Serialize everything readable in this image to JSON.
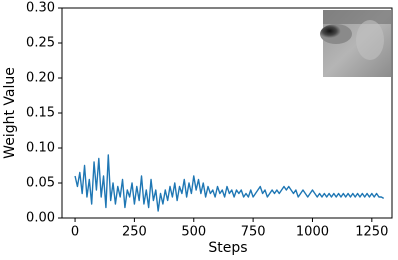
{
  "chart_data": {
    "type": "line",
    "x_label": "Steps",
    "y_label": "Weight Value",
    "x": [
      0,
      10,
      20,
      30,
      40,
      50,
      60,
      70,
      80,
      90,
      100,
      110,
      120,
      130,
      140,
      150,
      160,
      170,
      180,
      190,
      200,
      210,
      220,
      230,
      240,
      250,
      260,
      270,
      280,
      290,
      300,
      310,
      320,
      330,
      340,
      350,
      360,
      370,
      380,
      390,
      400,
      410,
      420,
      430,
      440,
      450,
      460,
      470,
      480,
      490,
      500,
      510,
      520,
      530,
      540,
      550,
      560,
      570,
      580,
      590,
      600,
      610,
      620,
      630,
      640,
      650,
      660,
      670,
      680,
      690,
      700,
      710,
      720,
      730,
      740,
      750,
      760,
      770,
      780,
      790,
      800,
      810,
      820,
      830,
      840,
      850,
      860,
      870,
      880,
      890,
      900,
      910,
      920,
      930,
      940,
      950,
      960,
      970,
      980,
      990,
      1000,
      1010,
      1020,
      1030,
      1040,
      1050,
      1060,
      1070,
      1080,
      1090,
      1100,
      1110,
      1120,
      1130,
      1140,
      1150,
      1160,
      1170,
      1180,
      1190,
      1200,
      1210,
      1220,
      1230,
      1240,
      1250,
      1260,
      1270,
      1280,
      1290,
      1300
    ],
    "series": [
      {
        "color": "#1f77b4",
        "values": [
          0.06,
          0.045,
          0.065,
          0.035,
          0.075,
          0.03,
          0.055,
          0.02,
          0.08,
          0.04,
          0.085,
          0.03,
          0.06,
          0.015,
          0.09,
          0.025,
          0.05,
          0.02,
          0.045,
          0.03,
          0.055,
          0.015,
          0.04,
          0.03,
          0.05,
          0.02,
          0.045,
          0.025,
          0.06,
          0.02,
          0.04,
          0.015,
          0.055,
          0.025,
          0.04,
          0.01,
          0.035,
          0.02,
          0.04,
          0.025,
          0.045,
          0.03,
          0.05,
          0.025,
          0.045,
          0.035,
          0.055,
          0.03,
          0.05,
          0.035,
          0.06,
          0.04,
          0.055,
          0.035,
          0.05,
          0.03,
          0.045,
          0.035,
          0.04,
          0.03,
          0.045,
          0.035,
          0.04,
          0.03,
          0.045,
          0.035,
          0.04,
          0.03,
          0.04,
          0.035,
          0.04,
          0.03,
          0.035,
          0.03,
          0.04,
          0.03,
          0.035,
          0.04,
          0.045,
          0.035,
          0.04,
          0.03,
          0.035,
          0.04,
          0.035,
          0.04,
          0.035,
          0.04,
          0.045,
          0.04,
          0.045,
          0.04,
          0.035,
          0.04,
          0.03,
          0.035,
          0.04,
          0.035,
          0.03,
          0.035,
          0.04,
          0.035,
          0.03,
          0.035,
          0.03,
          0.035,
          0.03,
          0.035,
          0.03,
          0.035,
          0.03,
          0.035,
          0.03,
          0.035,
          0.03,
          0.035,
          0.03,
          0.035,
          0.03,
          0.035,
          0.03,
          0.035,
          0.03,
          0.035,
          0.03,
          0.035,
          0.03,
          0.035,
          0.03,
          0.03,
          0.028
        ]
      }
    ],
    "xlim": [
      -55,
      1335
    ],
    "xticks": [
      0,
      250,
      500,
      750,
      1000,
      1250
    ],
    "ylim": [
      0,
      0.3
    ],
    "yticks": [
      {
        "value": 0,
        "label": "0.00"
      },
      {
        "value": 0.05,
        "label": "0.05"
      },
      {
        "value": 0.1,
        "label": "0.10"
      },
      {
        "value": 0.15,
        "label": "0.15"
      },
      {
        "value": 0.2,
        "label": "0.20"
      },
      {
        "value": 0.25,
        "label": "0.25"
      },
      {
        "value": 0.3,
        "label": "0.30"
      }
    ]
  }
}
